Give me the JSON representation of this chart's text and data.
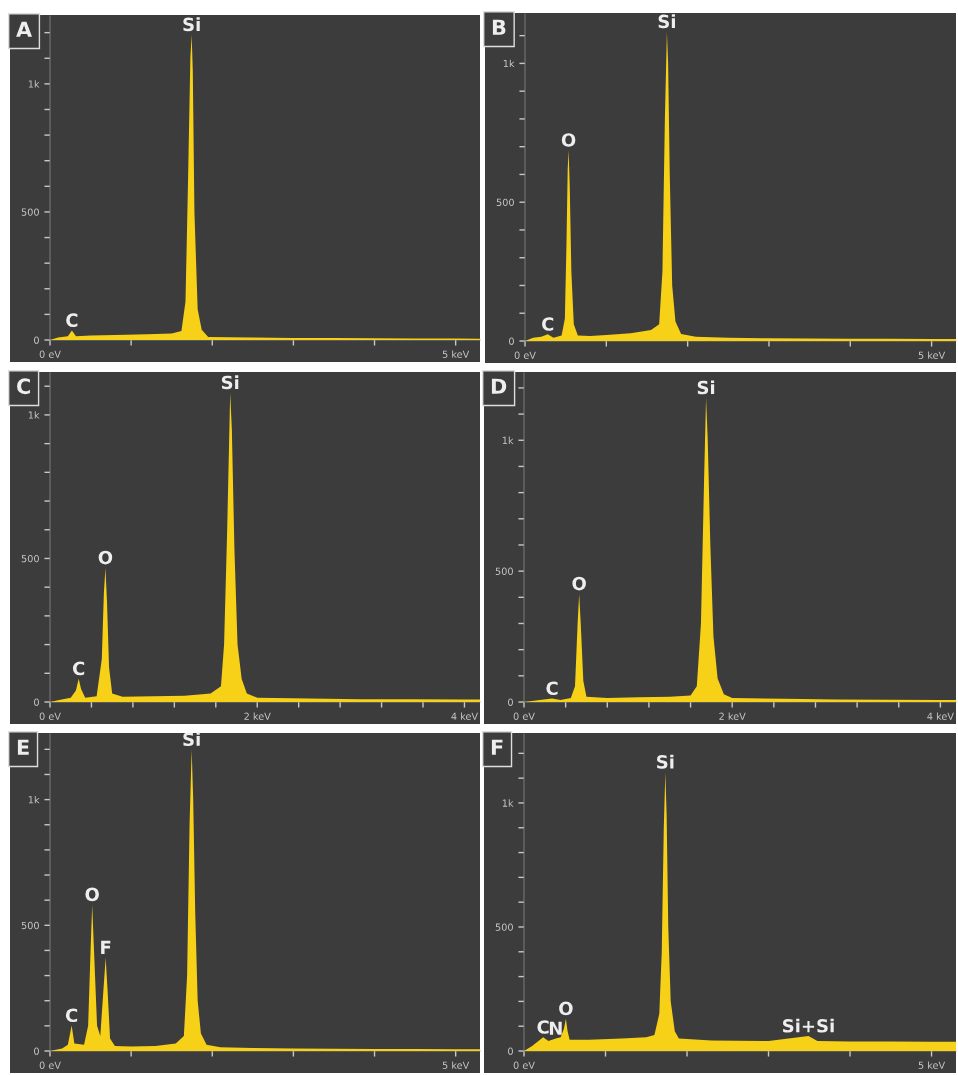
{
  "chart_data": [
    {
      "type": "area",
      "title": "A",
      "color": "#f7d117",
      "xlim": [
        0,
        5.3
      ],
      "ylim": [
        0,
        1265
      ],
      "xticks": [
        {
          "value": 0,
          "label": "0 eV"
        },
        {
          "value": 1,
          "label": null
        },
        {
          "value": 2,
          "label": null
        },
        {
          "value": 3,
          "label": null
        },
        {
          "value": 4,
          "label": null
        },
        {
          "value": 5,
          "label": "5 keV"
        }
      ],
      "yticks": [
        0,
        {
          "value": 100,
          "label": null
        },
        {
          "value": 200,
          "label": null
        },
        {
          "value": 300,
          "label": null
        },
        {
          "value": 400,
          "label": null
        },
        500,
        {
          "value": 600,
          "label": null
        },
        {
          "value": 700,
          "label": null
        },
        {
          "value": 800,
          "label": null
        },
        {
          "value": 900,
          "label": null
        },
        {
          "value": 1000,
          "label": "1k"
        },
        {
          "value": 1100,
          "label": null
        },
        {
          "value": 1200,
          "label": null
        }
      ],
      "x": [
        0,
        0.1,
        0.22,
        0.27,
        0.32,
        0.5,
        0.8,
        1.2,
        1.5,
        1.62,
        1.67,
        1.7,
        1.73,
        1.746,
        1.76,
        1.78,
        1.82,
        1.87,
        1.95,
        2.5,
        3,
        3.5,
        4,
        4.5,
        5,
        5.3
      ],
      "values": [
        0,
        10,
        15,
        37,
        15,
        18,
        20,
        22,
        25,
        35,
        150,
        600,
        1100,
        1192,
        1050,
        500,
        120,
        40,
        12,
        10,
        8,
        8,
        7,
        6,
        6,
        5
      ],
      "annotations": [
        {
          "text": "C",
          "x": 0.27,
          "y": 37
        },
        {
          "text": "Si",
          "x": 1.746,
          "y": 1192
        }
      ]
    },
    {
      "type": "area",
      "title": "B",
      "color": "#f7d117",
      "xlim": [
        0,
        5.3
      ],
      "ylim": [
        0,
        1178
      ],
      "xticks": [
        {
          "value": 0,
          "label": "0 eV"
        },
        {
          "value": 1,
          "label": null
        },
        {
          "value": 2,
          "label": null
        },
        {
          "value": 3,
          "label": null
        },
        {
          "value": 4,
          "label": null
        },
        {
          "value": 5,
          "label": "5 keV"
        }
      ],
      "yticks": [
        0,
        {
          "value": 100,
          "label": null
        },
        {
          "value": 200,
          "label": null
        },
        {
          "value": 300,
          "label": null
        },
        {
          "value": 400,
          "label": null
        },
        500,
        {
          "value": 600,
          "label": null
        },
        {
          "value": 700,
          "label": null
        },
        {
          "value": 800,
          "label": null
        },
        {
          "value": 900,
          "label": null
        },
        {
          "value": 1000,
          "label": "1k"
        },
        {
          "value": 1100,
          "label": null
        }
      ],
      "x": [
        0,
        0.1,
        0.2,
        0.28,
        0.35,
        0.45,
        0.49,
        0.51,
        0.525,
        0.536,
        0.55,
        0.57,
        0.6,
        0.65,
        0.8,
        1.0,
        1.3,
        1.55,
        1.65,
        1.69,
        1.72,
        1.745,
        1.76,
        1.78,
        1.81,
        1.85,
        1.92,
        2.1,
        2.5,
        3,
        3.5,
        4,
        4.5,
        5,
        5.3
      ],
      "values": [
        0,
        12,
        15,
        24,
        12,
        20,
        80,
        350,
        620,
        687,
        560,
        250,
        60,
        20,
        18,
        22,
        28,
        40,
        60,
        250,
        800,
        1114,
        1000,
        600,
        200,
        70,
        25,
        15,
        12,
        10,
        9,
        8,
        8,
        7,
        7
      ],
      "annotations": [
        {
          "text": "C",
          "x": 0.28,
          "y": 24
        },
        {
          "text": "O",
          "x": 0.536,
          "y": 687
        },
        {
          "text": "Si",
          "x": 1.745,
          "y": 1114
        }
      ]
    },
    {
      "type": "area",
      "title": "C",
      "color": "#f7d117",
      "xlim": [
        0,
        4.15
      ],
      "ylim": [
        0,
        1146
      ],
      "xticks": [
        {
          "value": 0,
          "label": "0 eV"
        },
        {
          "value": 0.4,
          "label": null
        },
        {
          "value": 0.8,
          "label": null
        },
        {
          "value": 1.2,
          "label": null
        },
        {
          "value": 1.6,
          "label": null
        },
        {
          "value": 2,
          "label": "2 keV"
        },
        {
          "value": 2.4,
          "label": null
        },
        {
          "value": 2.8,
          "label": null
        },
        {
          "value": 3.2,
          "label": null
        },
        {
          "value": 3.6,
          "label": null
        },
        {
          "value": 4,
          "label": "4 keV"
        }
      ],
      "yticks": [
        0,
        {
          "value": 100,
          "label": null
        },
        {
          "value": 200,
          "label": null
        },
        {
          "value": 300,
          "label": null
        },
        {
          "value": 400,
          "label": null
        },
        500,
        {
          "value": 600,
          "label": null
        },
        {
          "value": 700,
          "label": null
        },
        {
          "value": 800,
          "label": null
        },
        {
          "value": 900,
          "label": null
        },
        {
          "value": 1000,
          "label": "1k"
        },
        {
          "value": 1100,
          "label": null
        }
      ],
      "x": [
        0,
        0.1,
        0.2,
        0.25,
        0.277,
        0.3,
        0.34,
        0.45,
        0.5,
        0.52,
        0.535,
        0.55,
        0.57,
        0.6,
        0.7,
        1.0,
        1.3,
        1.55,
        1.65,
        1.68,
        1.71,
        1.739,
        1.755,
        1.78,
        1.81,
        1.85,
        1.9,
        2.0,
        2.5,
        3,
        3.5,
        4,
        4.15
      ],
      "values": [
        0,
        8,
        15,
        40,
        81,
        45,
        15,
        20,
        150,
        380,
        467,
        350,
        120,
        30,
        18,
        20,
        22,
        30,
        55,
        200,
        600,
        1077,
        950,
        530,
        200,
        80,
        30,
        15,
        12,
        10,
        10,
        9,
        9
      ],
      "annotations": [
        {
          "text": "C",
          "x": 0.277,
          "y": 81
        },
        {
          "text": "O",
          "x": 0.535,
          "y": 467
        },
        {
          "text": "Si",
          "x": 1.739,
          "y": 1077
        }
      ]
    },
    {
      "type": "area",
      "title": "D",
      "color": "#f7d117",
      "xlim": [
        0,
        4.15
      ],
      "ylim": [
        0,
        1257
      ],
      "xticks": [
        {
          "value": 0,
          "label": "0 eV"
        },
        {
          "value": 0.4,
          "label": null
        },
        {
          "value": 0.8,
          "label": null
        },
        {
          "value": 1.2,
          "label": null
        },
        {
          "value": 1.6,
          "label": null
        },
        {
          "value": 2,
          "label": "2 keV"
        },
        {
          "value": 2.4,
          "label": null
        },
        {
          "value": 2.8,
          "label": null
        },
        {
          "value": 3.2,
          "label": null
        },
        {
          "value": 3.6,
          "label": null
        },
        {
          "value": 4,
          "label": "4 keV"
        }
      ],
      "yticks": [
        0,
        {
          "value": 100,
          "label": null
        },
        {
          "value": 200,
          "label": null
        },
        {
          "value": 300,
          "label": null
        },
        {
          "value": 400,
          "label": null
        },
        500,
        {
          "value": 600,
          "label": null
        },
        {
          "value": 700,
          "label": null
        },
        {
          "value": 800,
          "label": null
        },
        {
          "value": 900,
          "label": null
        },
        {
          "value": 1000,
          "label": "1k"
        },
        {
          "value": 1100,
          "label": null
        },
        {
          "value": 1200,
          "label": null
        }
      ],
      "x": [
        0,
        0.15,
        0.27,
        0.35,
        0.45,
        0.49,
        0.515,
        0.53,
        0.545,
        0.57,
        0.6,
        0.8,
        1.1,
        1.4,
        1.6,
        1.66,
        1.7,
        1.73,
        1.749,
        1.765,
        1.79,
        1.82,
        1.86,
        1.92,
        2.0,
        2.5,
        3,
        3.5,
        4,
        4.15
      ],
      "values": [
        0,
        8,
        13,
        8,
        15,
        60,
        300,
        413,
        300,
        80,
        20,
        15,
        18,
        20,
        25,
        60,
        300,
        850,
        1162,
        1000,
        600,
        250,
        90,
        30,
        15,
        12,
        10,
        9,
        8,
        8
      ],
      "annotations": [
        {
          "text": "C",
          "x": 0.27,
          "y": 13
        },
        {
          "text": "O",
          "x": 0.53,
          "y": 413
        },
        {
          "text": "Si",
          "x": 1.749,
          "y": 1162
        }
      ]
    },
    {
      "type": "area",
      "title": "E",
      "color": "#f7d117",
      "xlim": [
        0,
        5.3
      ],
      "ylim": [
        0,
        1261
      ],
      "xticks": [
        {
          "value": 0,
          "label": "0 eV"
        },
        {
          "value": 1,
          "label": null
        },
        {
          "value": 2,
          "label": null
        },
        {
          "value": 3,
          "label": null
        },
        {
          "value": 4,
          "label": null
        },
        {
          "value": 5,
          "label": "5 keV"
        }
      ],
      "yticks": [
        0,
        {
          "value": 100,
          "label": null
        },
        {
          "value": 200,
          "label": null
        },
        {
          "value": 300,
          "label": null
        },
        {
          "value": 400,
          "label": null
        },
        500,
        {
          "value": 600,
          "label": null
        },
        {
          "value": 700,
          "label": null
        },
        {
          "value": 800,
          "label": null
        },
        {
          "value": 900,
          "label": null
        },
        {
          "value": 1000,
          "label": "1k"
        },
        {
          "value": 1100,
          "label": null
        },
        {
          "value": 1200,
          "label": null
        }
      ],
      "x": [
        0,
        0.15,
        0.22,
        0.267,
        0.3,
        0.42,
        0.47,
        0.5,
        0.52,
        0.54,
        0.58,
        0.62,
        0.66,
        0.686,
        0.71,
        0.74,
        0.8,
        1.0,
        1.3,
        1.55,
        1.65,
        1.69,
        1.72,
        1.746,
        1.765,
        1.79,
        1.82,
        1.86,
        1.93,
        2.1,
        2.5,
        3,
        3.5,
        4,
        4.5,
        5,
        5.3
      ],
      "values": [
        0,
        10,
        25,
        101,
        30,
        25,
        100,
        400,
        582,
        420,
        100,
        60,
        250,
        371,
        240,
        50,
        20,
        18,
        20,
        30,
        60,
        300,
        900,
        1199,
        1000,
        550,
        200,
        70,
        25,
        15,
        12,
        10,
        9,
        8,
        8,
        7,
        7
      ],
      "annotations": [
        {
          "text": "C",
          "x": 0.267,
          "y": 101
        },
        {
          "text": "O",
          "x": 0.52,
          "y": 582
        },
        {
          "text": "F",
          "x": 0.686,
          "y": 371
        },
        {
          "text": "Si",
          "x": 1.746,
          "y": 1199
        }
      ]
    },
    {
      "type": "area",
      "title": "F",
      "color": "#f7d117",
      "xlim": [
        0,
        5.3
      ],
      "ylim": [
        0,
        1278
      ],
      "xticks": [
        {
          "value": 0,
          "label": "0 eV"
        },
        {
          "value": 1,
          "label": null
        },
        {
          "value": 2,
          "label": null
        },
        {
          "value": 3,
          "label": null
        },
        {
          "value": 4,
          "label": null
        },
        {
          "value": 5,
          "label": "5 keV"
        }
      ],
      "yticks": [
        0,
        {
          "value": 100,
          "label": null
        },
        {
          "value": 200,
          "label": null
        },
        {
          "value": 300,
          "label": null
        },
        {
          "value": 400,
          "label": null
        },
        500,
        {
          "value": 600,
          "label": null
        },
        {
          "value": 700,
          "label": null
        },
        {
          "value": 800,
          "label": null
        },
        {
          "value": 900,
          "label": null
        },
        {
          "value": 1000,
          "label": "1k"
        },
        {
          "value": 1100,
          "label": null
        },
        {
          "value": 1200,
          "label": null
        }
      ],
      "x": [
        0,
        0.1,
        0.235,
        0.3,
        0.39,
        0.45,
        0.49,
        0.514,
        0.535,
        0.56,
        0.8,
        1.2,
        1.5,
        1.6,
        1.66,
        1.69,
        1.715,
        1.734,
        1.75,
        1.77,
        1.8,
        1.85,
        1.9,
        2.3,
        3,
        3.49,
        3.6,
        4,
        4.5,
        5,
        5.3
      ],
      "values": [
        0,
        20,
        55,
        40,
        50,
        55,
        90,
        130,
        80,
        45,
        45,
        50,
        55,
        65,
        150,
        400,
        900,
        1124,
        950,
        500,
        200,
        80,
        50,
        42,
        40,
        60,
        40,
        38,
        38,
        37,
        37
      ],
      "annotations": [
        {
          "text": "C",
          "x": 0.235,
          "y": 55
        },
        {
          "text": "N",
          "x": 0.39,
          "y": 50
        },
        {
          "text": "O",
          "x": 0.514,
          "y": 130
        },
        {
          "text": "Si",
          "x": 1.734,
          "y": 1124
        },
        {
          "text": "Si+Si",
          "x": 3.49,
          "y": 60
        }
      ]
    }
  ]
}
